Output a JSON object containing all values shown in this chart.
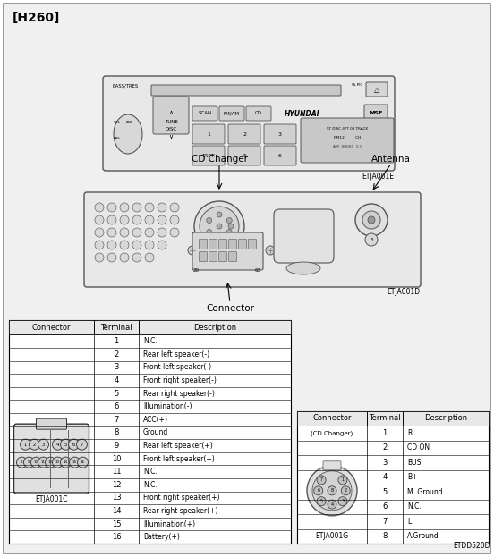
{
  "title": "[H260]",
  "bg_color": "#f0f0f0",
  "page_bg": "#ffffff",
  "etja001e": "ETJA001E",
  "etja001d": "ETJA001D",
  "etja001c": "ETJA001C",
  "etja001g": "ETJA001G",
  "etdd520d": "ETDD520D",
  "cd_changer_label": "CD Changer",
  "antenna_label": "Antenna",
  "connector_label": "Connector",
  "left_table_headers": [
    "Connector",
    "Terminal",
    "Description"
  ],
  "left_terminals": [
    1,
    2,
    3,
    4,
    5,
    6,
    7,
    8,
    9,
    10,
    11,
    12,
    13,
    14,
    15,
    16
  ],
  "left_descriptions": [
    "N.C.",
    "Rear left speaker(-)",
    "Front left speaker(-)",
    "Front right speaker(-)",
    "Rear right speaker(-)",
    "Illumination(-)",
    "ACC(+)",
    "Ground",
    "Rear left speaker(+)",
    "Front left speaker(+)",
    "N.C.",
    "N.C.",
    "Front right speaker(+)",
    "Rear right speaker(+)",
    "Illumination(+)",
    "Battery(+)"
  ],
  "right_table_headers": [
    "Connector",
    "Terminal",
    "Description"
  ],
  "right_connector_label": "(CD Changer)",
  "right_terminals": [
    1,
    2,
    3,
    4,
    5,
    6,
    7,
    8
  ],
  "right_descriptions": [
    "R",
    "CD ON",
    "BUS",
    "B+",
    "M. Ground",
    "N.C.",
    "L",
    "A.Ground"
  ]
}
